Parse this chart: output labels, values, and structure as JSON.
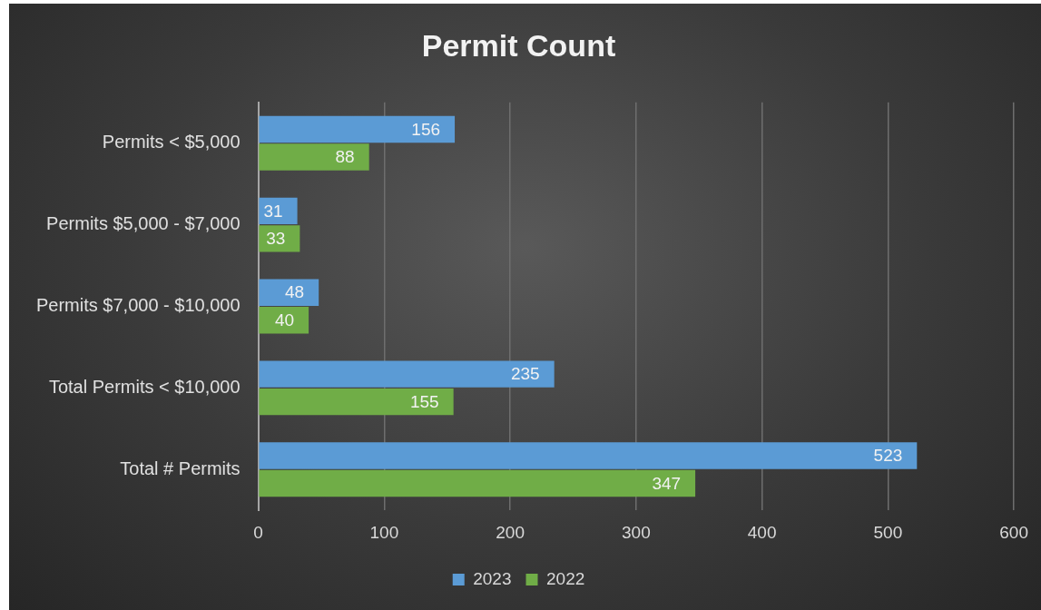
{
  "chart_data": {
    "type": "bar",
    "title": "Permit Count",
    "orientation": "horizontal",
    "categories": [
      "Permits < $5,000",
      "Permits $5,000 - $7,000",
      "Permits $7,000 - $10,000",
      "Total Permits < $10,000",
      "Total # Permits"
    ],
    "series": [
      {
        "name": "2023",
        "color": "#5b9bd5",
        "values": [
          156,
          31,
          48,
          235,
          523
        ]
      },
      {
        "name": "2022",
        "color": "#70ad47",
        "values": [
          88,
          33,
          40,
          155,
          347
        ]
      }
    ],
    "xlim": [
      0,
      600
    ],
    "xticks": [
      0,
      100,
      200,
      300,
      400,
      500,
      600
    ],
    "grid": "x",
    "legend": "bottom",
    "data_labels": true
  }
}
